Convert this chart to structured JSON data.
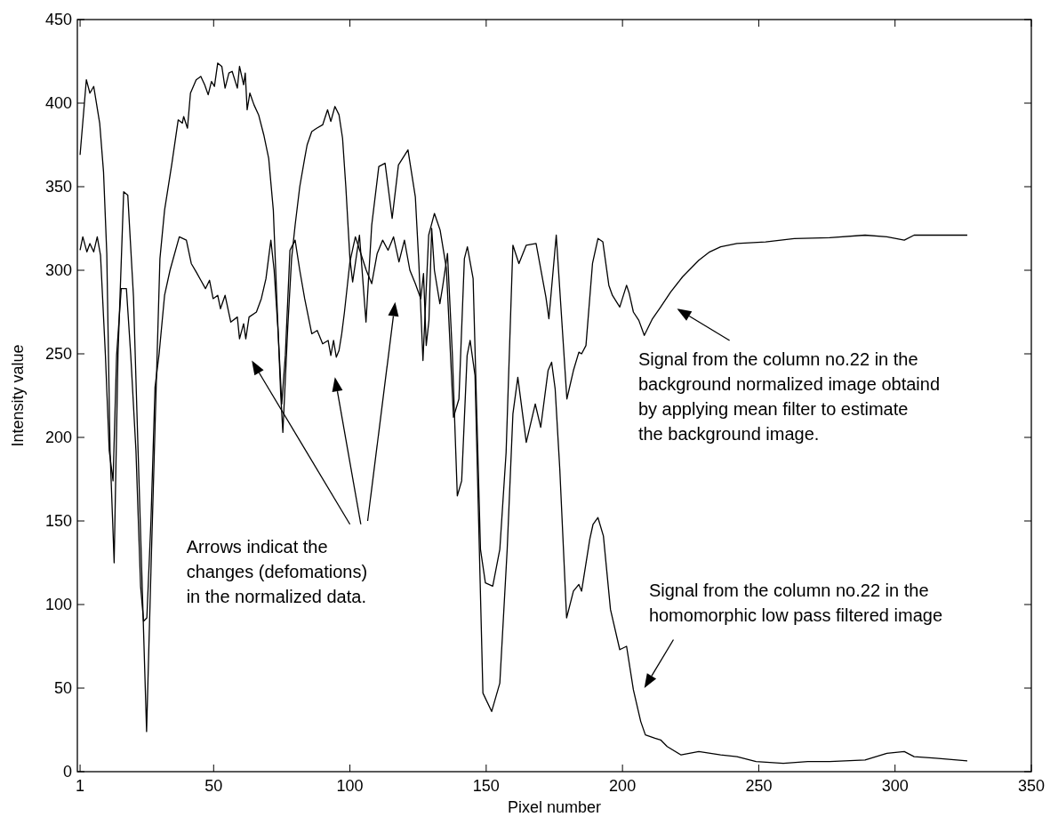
{
  "chart_data": {
    "type": "line",
    "xlabel": "Pixel number",
    "ylabel": "Intensity value",
    "xlim": [
      0,
      350
    ],
    "xticks": [
      1,
      50,
      100,
      150,
      200,
      250,
      300,
      350
    ],
    "ylim": [
      0,
      450
    ],
    "yticks": [
      0,
      50,
      100,
      150,
      200,
      250,
      300,
      350,
      400,
      450
    ],
    "series": [
      {
        "color": "#000000",
        "x": [
          1,
          3.3,
          4.6,
          6,
          8.2,
          9.6,
          10.8,
          12,
          13.5,
          14.9,
          17,
          18.5,
          20.6,
          22.3,
          24,
          25.4,
          27,
          28.5,
          30.3,
          32,
          34.7,
          37,
          38.5,
          39,
          40.4,
          41.5,
          43.6,
          45.3,
          46.7,
          48,
          49.2,
          50.3,
          51.5,
          53,
          54.2,
          55.6,
          56.8,
          58.7,
          59.5,
          61,
          61.6,
          62.3,
          63.3,
          64.8,
          66.5,
          68.4,
          70.2,
          71.9,
          73.3,
          74.6,
          75.4,
          77.2,
          78.6,
          79.9,
          81.6,
          83.4,
          84.3,
          86,
          87.8,
          90,
          91.8,
          93,
          94.5,
          96,
          97.3,
          98.5,
          100,
          101,
          103.5,
          105.9,
          108,
          110.6,
          112.9,
          115.5,
          117.8,
          121.3,
          124,
          125.3,
          126.8,
          128.9,
          131,
          133.1,
          135.4,
          138,
          140,
          142,
          143.1,
          145.2,
          147.9,
          149.7,
          152.4,
          155,
          157.3,
          159.8,
          162,
          164.7,
          168.3,
          171.9,
          173,
          175.7,
          179.6,
          182,
          184,
          185,
          186.6,
          189,
          191,
          192.8,
          195,
          196.3,
          199,
          201.5,
          202.5,
          204,
          206,
          208,
          211,
          214,
          217.7,
          222,
          228,
          232,
          236,
          242,
          252.5,
          263,
          276,
          289,
          297,
          303.4,
          307,
          315,
          326.5
        ],
        "values": [
          369,
          414,
          406,
          410,
          388,
          359,
          310,
          192,
          125,
          249,
          347,
          345,
          284,
          191,
          100,
          24,
          120,
          206,
          307,
          336,
          364,
          390,
          388,
          392,
          385,
          406,
          414,
          416,
          411,
          405,
          413,
          410,
          424,
          422,
          409,
          418,
          419,
          409,
          422,
          411,
          418,
          396,
          406,
          399,
          393,
          381,
          367,
          336,
          278,
          226,
          203,
          266,
          307,
          327,
          350,
          367,
          375,
          383,
          385,
          387,
          396,
          389,
          398,
          393,
          379,
          350,
          307,
          293,
          321,
          269,
          327,
          362,
          364,
          331,
          363,
          372,
          344,
          304,
          246,
          321,
          334,
          324,
          301,
          212,
          223,
          307,
          314,
          295,
          133,
          113,
          111,
          133,
          191,
          315,
          304,
          315,
          316,
          284,
          271,
          321,
          223,
          240,
          251,
          250,
          255,
          304,
          319,
          317,
          291,
          285,
          278,
          291,
          286,
          275,
          270,
          261,
          271,
          278,
          287,
          296,
          306,
          311,
          314,
          316,
          317,
          319,
          319.5,
          321,
          320,
          318,
          321,
          321,
          321
        ]
      },
      {
        "color": "#000000",
        "x": [
          1,
          2,
          3.5,
          4.6,
          6,
          7.3,
          8.5,
          10.3,
          11.7,
          13.1,
          14.4,
          16.1,
          18,
          19.6,
          21.5,
          23.2,
          24.3,
          25.5,
          27,
          28.5,
          30,
          32,
          34,
          37.4,
          40,
          41.8,
          43.6,
          45.3,
          47,
          48.5,
          49.8,
          51.5,
          52.5,
          54.2,
          56.3,
          58.7,
          59.5,
          61,
          61.8,
          63,
          65.7,
          67.5,
          69.2,
          71,
          72.2,
          73.7,
          75,
          76.3,
          78,
          79.9,
          81.6,
          83.4,
          86,
          88,
          90,
          92,
          93,
          94,
          95,
          96,
          97,
          98,
          99,
          100,
          102,
          104,
          106,
          108,
          110,
          112,
          114,
          116,
          118,
          120,
          122,
          124,
          126,
          127,
          128,
          129,
          130,
          131,
          132,
          133,
          134,
          135.8,
          137.6,
          139.4,
          141,
          143,
          144.1,
          145.9,
          148.8,
          152,
          155,
          157.7,
          159.8,
          161.6,
          164.7,
          168,
          170,
          172.7,
          174,
          175.3,
          177,
          179.5,
          182,
          184,
          185,
          188,
          189.2,
          191,
          193,
          195.6,
          199,
          201.5,
          204,
          206.7,
          208.4,
          211.9,
          214,
          216.4,
          221.5,
          228,
          236,
          242,
          249,
          259,
          268,
          276,
          289,
          297,
          303.4,
          307,
          315,
          326.5
        ],
        "values": [
          312,
          320,
          311,
          316,
          311,
          320,
          309,
          249,
          192,
          174,
          249,
          289,
          289,
          249,
          192,
          111,
          90,
          92,
          150,
          230,
          250,
          285,
          300,
          320,
          318,
          304,
          299,
          294,
          289,
          294,
          283,
          285,
          277,
          285,
          269,
          272,
          259,
          268,
          259,
          272,
          275,
          283,
          295,
          318,
          300,
          262,
          220,
          249,
          312,
          318,
          300,
          283,
          262,
          264,
          256,
          258,
          249,
          258,
          248,
          252,
          262,
          275,
          290,
          305,
          320,
          310,
          300,
          292,
          310,
          318,
          312,
          320,
          305,
          318,
          300,
          292,
          283,
          298,
          255,
          270,
          325,
          300,
          290,
          280,
          290,
          310,
          249,
          165,
          174,
          249,
          258,
          237,
          47,
          36,
          53,
          133,
          214,
          236,
          197,
          220,
          206,
          240,
          245,
          229,
          181,
          92,
          108,
          112,
          108,
          139,
          148,
          152,
          141,
          97,
          73,
          75,
          49,
          30,
          22,
          20,
          19,
          15,
          10,
          12,
          10,
          9,
          6,
          5,
          6,
          6,
          7,
          11,
          12,
          9,
          8,
          6.5
        ]
      }
    ],
    "annotations": [
      "Arrows indicat the\nchanges (defomations)\nin the normalized data.",
      "Signal from the column no.22 in the\nbackground normalized image obtaind\nby applying mean filter to estimate\nthe background image.",
      "Signal from the column no.22 in the\nhomomorphic low pass filtered image"
    ]
  }
}
